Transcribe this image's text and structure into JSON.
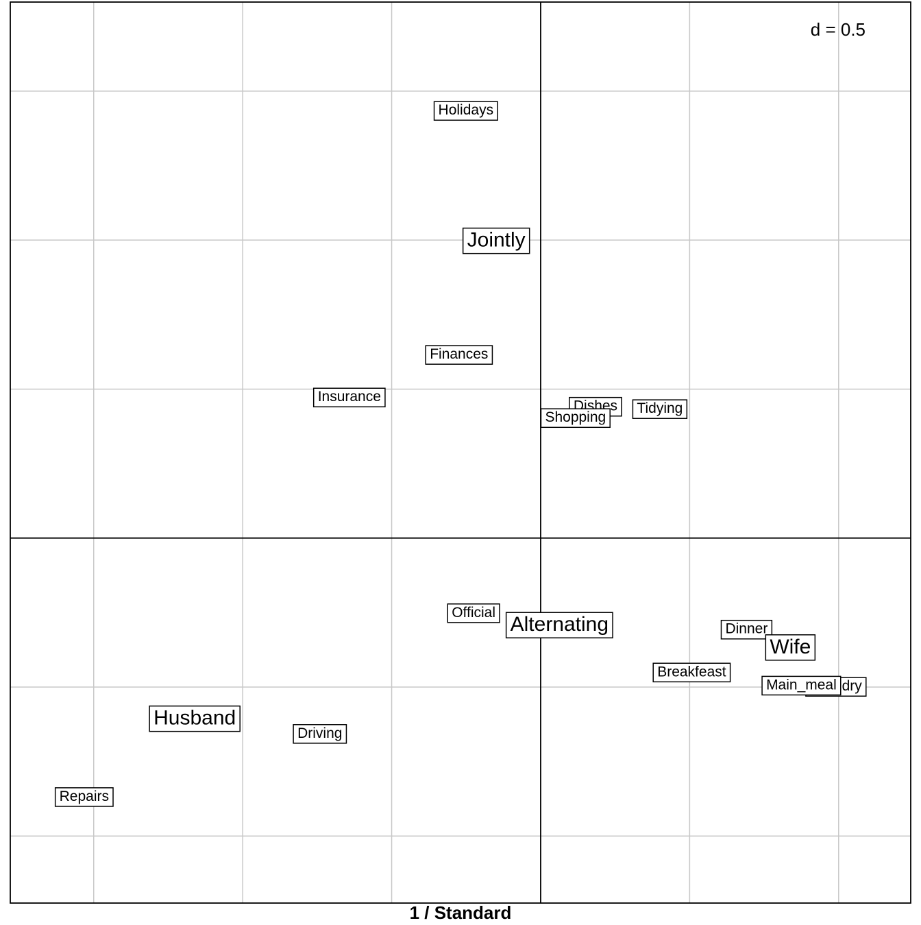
{
  "chart_data": {
    "type": "scatter",
    "title": "1 / Standard",
    "scale_label": "d = 0.5",
    "grid_step": 0.5,
    "xlim": [
      -1.78,
      1.242
    ],
    "ylim": [
      -1.225,
      1.799
    ],
    "grid": true,
    "colors": {
      "grid": "#c8c8c8",
      "axis": "#000000",
      "text": "#000000",
      "background": "#ffffff"
    },
    "series": [
      {
        "role": "columns",
        "points": [
          {
            "label": "Jointly",
            "x": -0.149,
            "y": 1.0
          },
          {
            "label": "Alternating",
            "x": 0.063,
            "y": -0.29
          },
          {
            "label": "Wife",
            "x": 0.838,
            "y": -0.365
          },
          {
            "label": "Husband",
            "x": -1.161,
            "y": -0.604
          }
        ]
      },
      {
        "role": "rows",
        "points": [
          {
            "label": "Holidays",
            "x": -0.251,
            "y": 1.436
          },
          {
            "label": "Finances",
            "x": -0.274,
            "y": 0.617
          },
          {
            "label": "Insurance",
            "x": -0.642,
            "y": 0.474
          },
          {
            "label": "Dishes",
            "x": 0.184,
            "y": 0.443
          },
          {
            "label": "Tidying",
            "x": 0.4,
            "y": 0.435
          },
          {
            "label": "Shopping",
            "x": 0.117,
            "y": 0.405
          },
          {
            "label": "Official",
            "x": -0.225,
            "y": -0.25
          },
          {
            "label": "Dinner",
            "x": 0.691,
            "y": -0.305
          },
          {
            "label": "Breakfeast",
            "x": 0.507,
            "y": -0.449
          },
          {
            "label": "Laundry",
            "x": 0.991,
            "y": -0.497
          },
          {
            "label": "Main_meal",
            "x": 0.875,
            "y": -0.493
          },
          {
            "label": "Driving",
            "x": -0.741,
            "y": -0.655
          },
          {
            "label": "Repairs",
            "x": -1.532,
            "y": -0.867
          }
        ]
      }
    ]
  }
}
